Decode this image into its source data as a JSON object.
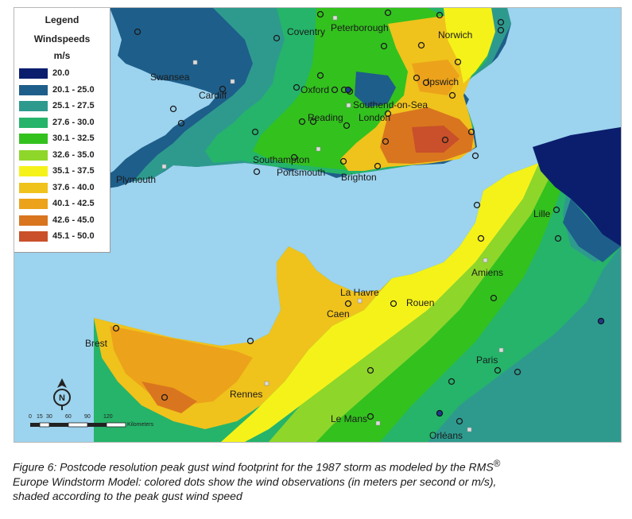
{
  "legend": {
    "title": "Legend",
    "subtitle": "Windspeeds",
    "units": "m/s",
    "classes": [
      {
        "label": "20.0",
        "color": "#0b1e6e"
      },
      {
        "label": "20.1 - 25.0",
        "color": "#1e5e8a"
      },
      {
        "label": "25.1 - 27.5",
        "color": "#2e9a8e"
      },
      {
        "label": "27.6 - 30.0",
        "color": "#25b46a"
      },
      {
        "label": "30.1 - 32.5",
        "color": "#33c11e"
      },
      {
        "label": "32.6 - 35.0",
        "color": "#8fd62a"
      },
      {
        "label": "35.1 - 37.5",
        "color": "#f5f21a"
      },
      {
        "label": "37.6 - 40.0",
        "color": "#f0c21c"
      },
      {
        "label": "40.1 - 42.5",
        "color": "#eca21a"
      },
      {
        "label": "42.6 - 45.0",
        "color": "#d9751f"
      },
      {
        "label": "45.1 - 50.0",
        "color": "#c9502a"
      }
    ]
  },
  "cities": [
    {
      "name": "Coventry"
    },
    {
      "name": "Peterborough"
    },
    {
      "name": "Norwich"
    },
    {
      "name": "Swansea"
    },
    {
      "name": "Cardiff"
    },
    {
      "name": "Oxford"
    },
    {
      "name": "Ipswich"
    },
    {
      "name": "Southend-on-Sea"
    },
    {
      "name": "Reading"
    },
    {
      "name": "London"
    },
    {
      "name": "Southampton"
    },
    {
      "name": "Portsmouth"
    },
    {
      "name": "Brighton"
    },
    {
      "name": "Plymouth"
    },
    {
      "name": "Lille"
    },
    {
      "name": "Amiens"
    },
    {
      "name": "La Havre"
    },
    {
      "name": "Rouen"
    },
    {
      "name": "Caen"
    },
    {
      "name": "Brest"
    },
    {
      "name": "Paris"
    },
    {
      "name": "Rennes"
    },
    {
      "name": "Le Mans"
    },
    {
      "name": "Orléans"
    }
  ],
  "scale_bar": {
    "ticks": [
      "0",
      "15",
      "30",
      "60",
      "90",
      "120"
    ],
    "unit": "Kilometers"
  },
  "north_arrow": {
    "label": "N",
    "icon": "north-arrow-icon"
  },
  "caption": {
    "line1": "Figure 6: Postcode resolution peak gust wind footprint for the 1987 storm as modeled by the RMS",
    "superscript": "®",
    "line2": "Europe Windstorm Model: colored dots show the wind observations (in meters per second or m/s),",
    "line3": "shaded according to the peak gust wind speed"
  },
  "colors": {
    "sea": "#9cd3ee",
    "land_west_britain": "#1e5e8a",
    "inland_france": "#25b46a",
    "belgium": "#0b1e6e"
  }
}
